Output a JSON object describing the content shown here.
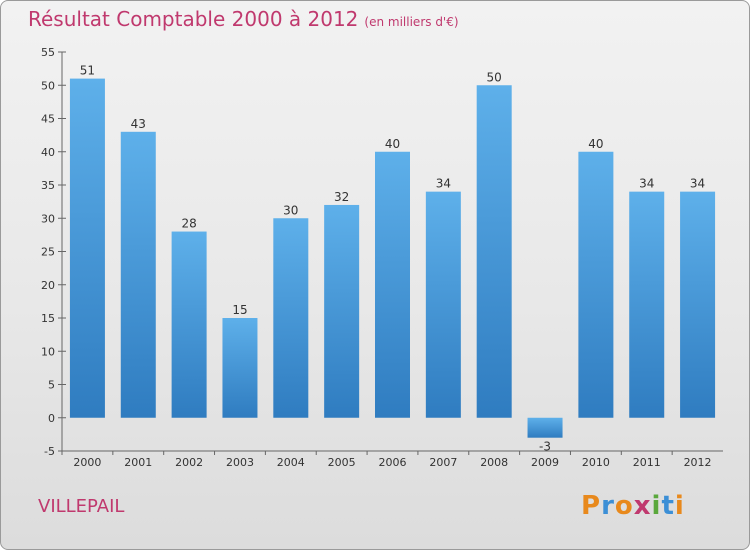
{
  "header": {
    "title": "Résultat Comptable 2000 à 2012",
    "subtitle": "(en milliers d'€)"
  },
  "commune": "VILLEPAIL",
  "logo": {
    "letters": [
      "P",
      "r",
      "o",
      "x",
      "i",
      "t",
      "i"
    ],
    "colors": [
      "#e8891c",
      "#3c8fd6",
      "#e8891c",
      "#c0396e",
      "#5aa83c",
      "#3c8fd6",
      "#e8891c"
    ]
  },
  "colors": {
    "bar_top": "#5eb0ea",
    "bar_bottom": "#2f7cc0",
    "title": "#c0396e"
  },
  "chart_data": {
    "type": "bar",
    "title": "Résultat Comptable 2000 à 2012",
    "xlabel": "",
    "ylabel": "",
    "categories": [
      "2000",
      "2001",
      "2002",
      "2003",
      "2004",
      "2005",
      "2006",
      "2007",
      "2008",
      "2009",
      "2010",
      "2011",
      "2012"
    ],
    "values": [
      51,
      43,
      28,
      15,
      30,
      32,
      40,
      34,
      50,
      -3,
      40,
      34,
      34
    ],
    "ylim": [
      -5,
      55
    ],
    "yticks": [
      -5,
      0,
      5,
      10,
      15,
      20,
      25,
      30,
      35,
      40,
      45,
      50,
      55
    ],
    "grid": false
  }
}
